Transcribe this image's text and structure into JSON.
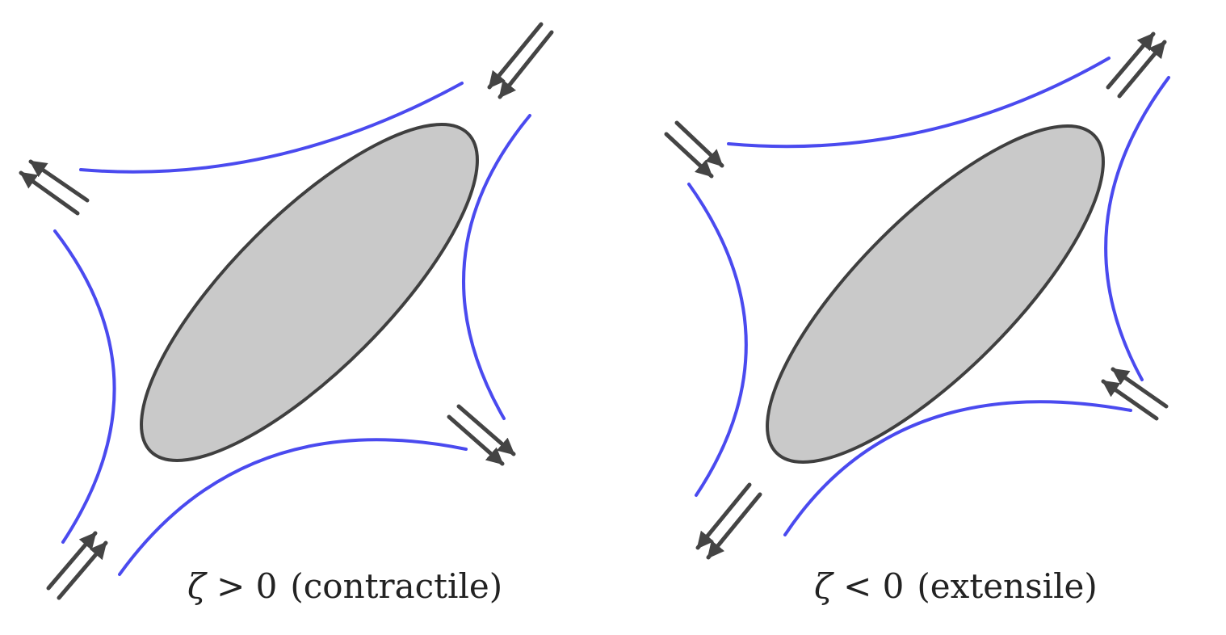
{
  "panels": [
    {
      "symbol": "ζ",
      "relation": " > 0",
      "label": "(contractile)"
    },
    {
      "symbol": "ζ",
      "relation": " < 0",
      "label": "(extensile)"
    }
  ],
  "colors": {
    "flow_line": "#4a4aef",
    "body_fill": "#c9c9c9",
    "body_stroke": "#3f3f3f",
    "arrow": "#444444"
  }
}
